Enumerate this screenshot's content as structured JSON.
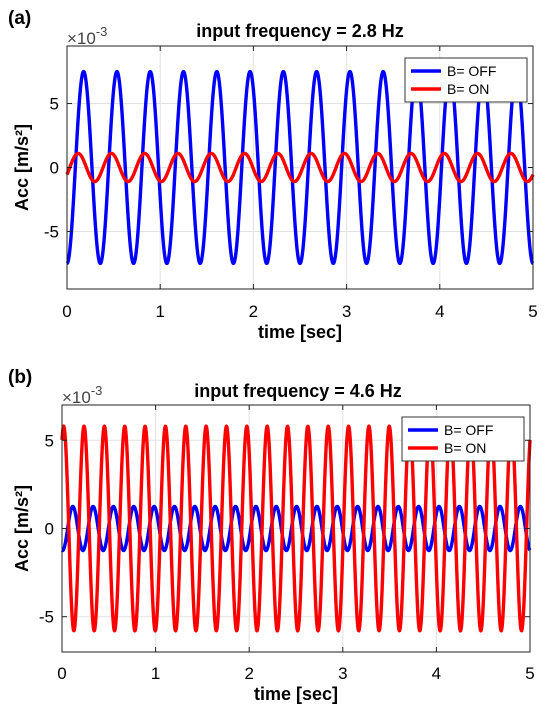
{
  "chart_data": [
    {
      "type": "line",
      "panel_label": "(a)",
      "title": "input frequency = 2.8 Hz",
      "xlabel": "time [sec]",
      "ylabel": "Acc [m/s²]",
      "exponent_label": "×10",
      "exponent_power": "-3",
      "xlim": [
        0,
        5
      ],
      "ylim": [
        -9.5,
        9.5
      ],
      "x_ticks": [
        "0",
        "1",
        "2",
        "3",
        "4",
        "5"
      ],
      "y_ticks": [
        {
          "value": -5,
          "label": "-5"
        },
        {
          "value": 0,
          "label": "0"
        },
        {
          "value": 5,
          "label": "5"
        }
      ],
      "grid": true,
      "legend_position": "top-right",
      "series": [
        {
          "name": "B= OFF",
          "color": "#0000ff",
          "frequency_hz": 2.8,
          "amplitude": 7.5,
          "phase_deg": -90,
          "offset": 0.0
        },
        {
          "name": "B= ON",
          "color": "#ff0000",
          "frequency_hz": 2.8,
          "amplitude": 1.1,
          "phase_deg": -30,
          "offset": 0.0
        }
      ]
    },
    {
      "type": "line",
      "panel_label": "(b)",
      "title": "input frequency = 4.6 Hz",
      "xlabel": "time [sec]",
      "ylabel": "Acc [m/s²]",
      "exponent_label": "×10",
      "exponent_power": "-3",
      "xlim": [
        0,
        5
      ],
      "ylim": [
        -7,
        7
      ],
      "x_ticks": [
        "0",
        "1",
        "2",
        "3",
        "4",
        "5"
      ],
      "y_ticks": [
        {
          "value": -5,
          "label": "-5"
        },
        {
          "value": 0,
          "label": "0"
        },
        {
          "value": 5,
          "label": "5"
        }
      ],
      "grid": true,
      "legend_position": "top-right",
      "series": [
        {
          "name": "B= OFF",
          "color": "#0000ff",
          "frequency_hz": 4.6,
          "amplitude": 1.25,
          "phase_deg": -100,
          "offset": 0.0
        },
        {
          "name": "B= ON",
          "color": "#ff0000",
          "frequency_hz": 4.6,
          "amplitude": 5.8,
          "phase_deg": 60,
          "offset": 0.0
        }
      ]
    }
  ]
}
